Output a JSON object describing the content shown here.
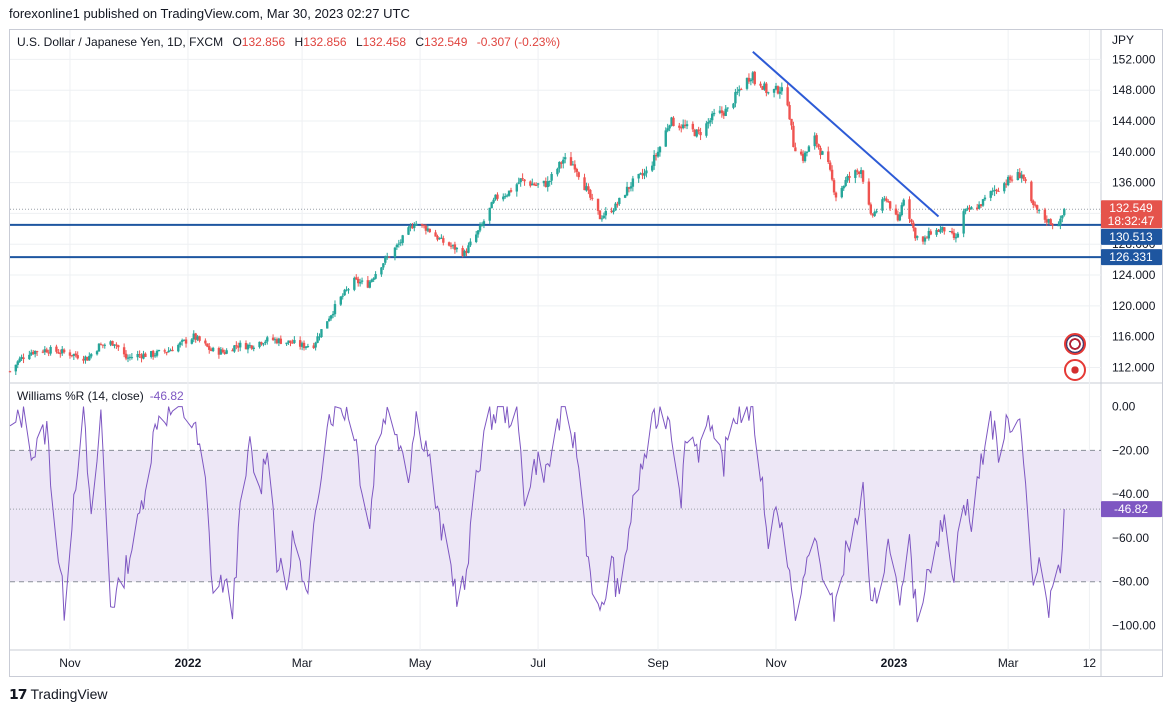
{
  "publisher_text": "forexonline1 published on TradingView.com, Mar 30, 2023 02:27 UTC",
  "legend": {
    "symbol": "U.S. Dollar / Japanese Yen, 1D, FXCM",
    "o_label": "O",
    "o": "132.856",
    "h_label": "H",
    "h": "132.856",
    "l_label": "L",
    "l": "132.458",
    "c_label": "C",
    "c": "132.549",
    "change": "-0.307 (-0.23%)"
  },
  "indicator_legend": {
    "name": "Williams %R (14, close)",
    "value": "-46.82"
  },
  "footer_brand": "TradingView",
  "currency": "JPY",
  "price_tags": {
    "last_price": "132.549",
    "countdown": "18:32:47",
    "support_1": "130.513",
    "support_2": "126.331",
    "wr_value": "-46.82"
  },
  "colors": {
    "up": "#26a69a",
    "down": "#ef5350",
    "level_line": "#1e56a0",
    "trendline": "#2d5bd6",
    "wr_line": "#7e57c2",
    "wr_band": "#ede7f6",
    "grid": "#eef0f3",
    "axis_text": "#131722"
  },
  "chart_data": [
    {
      "type": "candlestick",
      "title": "U.S. Dollar / Japanese Yen, 1D, FXCM",
      "y_unit": "JPY",
      "y_range": [
        110.5,
        154.0
      ],
      "y_ticks": [
        "152.000",
        "148.000",
        "144.000",
        "140.000",
        "136.000",
        "132.000",
        "128.000",
        "124.000",
        "120.000",
        "116.000",
        "112.000"
      ],
      "y_tick_values": [
        152,
        148,
        144,
        140,
        136,
        132,
        128,
        124,
        120,
        116,
        112
      ],
      "x_ticks": [
        "Nov",
        "2022",
        "Mar",
        "May",
        "Jul",
        "Sep",
        "Nov",
        "2023",
        "Mar",
        "12"
      ],
      "x_start": "2021-10-01",
      "x_end": "2023-04-18",
      "anchors": [
        [
          "2021-10-01",
          111.5
        ],
        [
          "2021-10-06",
          113.0
        ],
        [
          "2021-10-11",
          114.0
        ],
        [
          "2021-10-20",
          114.3
        ],
        [
          "2021-11-01",
          113.8
        ],
        [
          "2021-11-10",
          113.2
        ],
        [
          "2021-11-16",
          114.8
        ],
        [
          "2021-11-24",
          115.3
        ],
        [
          "2021-11-30",
          113.2
        ],
        [
          "2021-12-06",
          113.6
        ],
        [
          "2021-12-14",
          113.7
        ],
        [
          "2021-12-22",
          114.2
        ],
        [
          "2022-01-04",
          116.0
        ],
        [
          "2022-01-13",
          114.2
        ],
        [
          "2022-01-20",
          114.0
        ],
        [
          "2022-01-26",
          114.9
        ],
        [
          "2022-02-02",
          114.8
        ],
        [
          "2022-02-09",
          115.5
        ],
        [
          "2022-02-14",
          115.6
        ],
        [
          "2022-02-24",
          115.2
        ],
        [
          "2022-03-01",
          114.8
        ],
        [
          "2022-03-07",
          115.0
        ],
        [
          "2022-03-14",
          118.2
        ],
        [
          "2022-03-21",
          121.0
        ],
        [
          "2022-03-28",
          123.2
        ],
        [
          "2022-04-04",
          122.8
        ],
        [
          "2022-04-11",
          125.4
        ],
        [
          "2022-04-20",
          128.0
        ],
        [
          "2022-04-28",
          130.8
        ],
        [
          "2022-05-05",
          130.0
        ],
        [
          "2022-05-12",
          128.4
        ],
        [
          "2022-05-19",
          127.5
        ],
        [
          "2022-05-24",
          126.8
        ],
        [
          "2022-06-01",
          130.0
        ],
        [
          "2022-06-09",
          134.0
        ],
        [
          "2022-06-15",
          134.6
        ],
        [
          "2022-06-22",
          136.3
        ],
        [
          "2022-06-30",
          135.7
        ],
        [
          "2022-07-06",
          135.9
        ],
        [
          "2022-07-14",
          139.0
        ],
        [
          "2022-07-20",
          138.3
        ],
        [
          "2022-07-28",
          134.0
        ],
        [
          "2022-08-02",
          131.5
        ],
        [
          "2022-08-10",
          132.9
        ],
        [
          "2022-08-18",
          135.8
        ],
        [
          "2022-08-26",
          137.3
        ],
        [
          "2022-09-01",
          140.0
        ],
        [
          "2022-09-07",
          144.0
        ],
        [
          "2022-09-14",
          143.3
        ],
        [
          "2022-09-22",
          142.3
        ],
        [
          "2022-09-30",
          144.7
        ],
        [
          "2022-10-07",
          145.4
        ],
        [
          "2022-10-14",
          148.5
        ],
        [
          "2022-10-20",
          150.2
        ],
        [
          "2022-10-21",
          149.0
        ],
        [
          "2022-10-24",
          149.0
        ],
        [
          "2022-10-28",
          147.6
        ],
        [
          "2022-11-03",
          148.2
        ],
        [
          "2022-11-07",
          146.6
        ],
        [
          "2022-11-10",
          141.0
        ],
        [
          "2022-11-15",
          139.2
        ],
        [
          "2022-11-21",
          141.7
        ],
        [
          "2022-11-28",
          138.1
        ],
        [
          "2022-12-02",
          134.3
        ],
        [
          "2022-12-08",
          136.5
        ],
        [
          "2022-12-15",
          137.8
        ],
        [
          "2022-12-20",
          131.5
        ],
        [
          "2022-12-28",
          134.0
        ],
        [
          "2023-01-03",
          130.9
        ],
        [
          "2023-01-06",
          134.1
        ],
        [
          "2023-01-12",
          129.2
        ],
        [
          "2023-01-16",
          128.2
        ],
        [
          "2023-01-20",
          129.6
        ],
        [
          "2023-01-27",
          129.9
        ],
        [
          "2023-02-02",
          128.6
        ],
        [
          "2023-02-06",
          132.1
        ],
        [
          "2023-02-14",
          133.0
        ],
        [
          "2023-02-21",
          134.9
        ],
        [
          "2023-02-28",
          136.1
        ],
        [
          "2023-03-08",
          137.2
        ],
        [
          "2023-03-13",
          133.2
        ],
        [
          "2023-03-20",
          131.3
        ],
        [
          "2023-03-24",
          130.7
        ],
        [
          "2023-03-28",
          130.9
        ],
        [
          "2023-03-30",
          132.549
        ]
      ],
      "horizontal_levels": [
        130.513,
        126.331
      ],
      "last_price": 132.549,
      "trendline": [
        [
          "2022-10-20",
          153.0
        ],
        [
          "2023-01-24",
          131.6
        ]
      ]
    },
    {
      "type": "line",
      "title": "Williams %R (14, close)",
      "y_range": [
        -108,
        3
      ],
      "y_ticks": [
        "0.00",
        "−20.00",
        "−40.00",
        "−60.00",
        "−80.00",
        "−100.00"
      ],
      "y_tick_values": [
        0,
        -20,
        -40,
        -60,
        -80,
        -100
      ],
      "bands": [
        -20,
        -80
      ],
      "last_value": -46.82,
      "anchors": [
        [
          "2021-10-01",
          -12
        ],
        [
          "2021-10-08",
          -3
        ],
        [
          "2021-10-13",
          -22
        ],
        [
          "2021-10-20",
          -10
        ],
        [
          "2021-10-25",
          -60
        ],
        [
          "2021-10-29",
          -92
        ],
        [
          "2021-11-03",
          -40
        ],
        [
          "2021-11-08",
          -2
        ],
        [
          "2021-11-12",
          -55
        ],
        [
          "2021-11-17",
          -3
        ],
        [
          "2021-11-22",
          -90
        ],
        [
          "2021-11-26",
          -85
        ],
        [
          "2021-12-01",
          -70
        ],
        [
          "2021-12-06",
          -55
        ],
        [
          "2021-12-10",
          -35
        ],
        [
          "2021-12-16",
          -5
        ],
        [
          "2021-12-22",
          -3
        ],
        [
          "2021-12-29",
          -2
        ],
        [
          "2022-01-04",
          -8
        ],
        [
          "2022-01-10",
          -35
        ],
        [
          "2022-01-14",
          -85
        ],
        [
          "2022-01-19",
          -80
        ],
        [
          "2022-01-24",
          -92
        ],
        [
          "2022-01-28",
          -50
        ],
        [
          "2022-02-02",
          -18
        ],
        [
          "2022-02-07",
          -40
        ],
        [
          "2022-02-11",
          -15
        ],
        [
          "2022-02-16",
          -70
        ],
        [
          "2022-02-21",
          -85
        ],
        [
          "2022-02-25",
          -55
        ],
        [
          "2022-03-01",
          -80
        ],
        [
          "2022-03-04",
          -90
        ],
        [
          "2022-03-09",
          -40
        ],
        [
          "2022-03-14",
          -5
        ],
        [
          "2022-03-18",
          -2
        ],
        [
          "2022-03-24",
          -1
        ],
        [
          "2022-03-28",
          -10
        ],
        [
          "2022-03-31",
          -30
        ],
        [
          "2022-04-05",
          -55
        ],
        [
          "2022-04-08",
          -20
        ],
        [
          "2022-04-13",
          -2
        ],
        [
          "2022-04-19",
          -10
        ],
        [
          "2022-04-25",
          -30
        ],
        [
          "2022-04-29",
          -5
        ],
        [
          "2022-05-05",
          -20
        ],
        [
          "2022-05-10",
          -50
        ],
        [
          "2022-05-16",
          -70
        ],
        [
          "2022-05-20",
          -85
        ],
        [
          "2022-05-25",
          -80
        ],
        [
          "2022-05-30",
          -30
        ],
        [
          "2022-06-06",
          -5
        ],
        [
          "2022-06-13",
          -2
        ],
        [
          "2022-06-20",
          -5
        ],
        [
          "2022-06-24",
          -40
        ],
        [
          "2022-06-30",
          -25
        ],
        [
          "2022-07-06",
          -30
        ],
        [
          "2022-07-11",
          -8
        ],
        [
          "2022-07-15",
          -2
        ],
        [
          "2022-07-21",
          -20
        ],
        [
          "2022-07-27",
          -70
        ],
        [
          "2022-08-02",
          -98
        ],
        [
          "2022-08-08",
          -70
        ],
        [
          "2022-08-12",
          -90
        ],
        [
          "2022-08-17",
          -55
        ],
        [
          "2022-08-23",
          -30
        ],
        [
          "2022-08-29",
          -10
        ],
        [
          "2022-09-02",
          -2
        ],
        [
          "2022-09-07",
          -5
        ],
        [
          "2022-09-13",
          -40
        ],
        [
          "2022-09-16",
          -10
        ],
        [
          "2022-09-22",
          -20
        ],
        [
          "2022-09-26",
          -3
        ],
        [
          "2022-09-30",
          -20
        ],
        [
          "2022-10-05",
          -25
        ],
        [
          "2022-10-10",
          -5
        ],
        [
          "2022-10-14",
          -2
        ],
        [
          "2022-10-20",
          -1
        ],
        [
          "2022-10-24",
          -30
        ],
        [
          "2022-10-28",
          -60
        ],
        [
          "2022-11-02",
          -45
        ],
        [
          "2022-11-07",
          -70
        ],
        [
          "2022-11-10",
          -95
        ],
        [
          "2022-11-15",
          -80
        ],
        [
          "2022-11-21",
          -60
        ],
        [
          "2022-11-25",
          -75
        ],
        [
          "2022-12-01",
          -95
        ],
        [
          "2022-12-06",
          -70
        ],
        [
          "2022-12-12",
          -55
        ],
        [
          "2022-12-16",
          -40
        ],
        [
          "2022-12-20",
          -95
        ],
        [
          "2022-12-26",
          -75
        ],
        [
          "2022-12-30",
          -60
        ],
        [
          "2023-01-04",
          -95
        ],
        [
          "2023-01-09",
          -65
        ],
        [
          "2023-01-13",
          -98
        ],
        [
          "2023-01-18",
          -75
        ],
        [
          "2023-01-23",
          -60
        ],
        [
          "2023-01-27",
          -55
        ],
        [
          "2023-02-01",
          -75
        ],
        [
          "2023-02-06",
          -40
        ],
        [
          "2023-02-10",
          -55
        ],
        [
          "2023-02-15",
          -25
        ],
        [
          "2023-02-20",
          -5
        ],
        [
          "2023-02-24",
          -20
        ],
        [
          "2023-03-01",
          -8
        ],
        [
          "2023-03-06",
          -2
        ],
        [
          "2023-03-09",
          -20
        ],
        [
          "2023-03-14",
          -85
        ],
        [
          "2023-03-17",
          -70
        ],
        [
          "2023-03-21",
          -95
        ],
        [
          "2023-03-24",
          -80
        ],
        [
          "2023-03-28",
          -70
        ],
        [
          "2023-03-30",
          -46.82
        ]
      ]
    }
  ]
}
